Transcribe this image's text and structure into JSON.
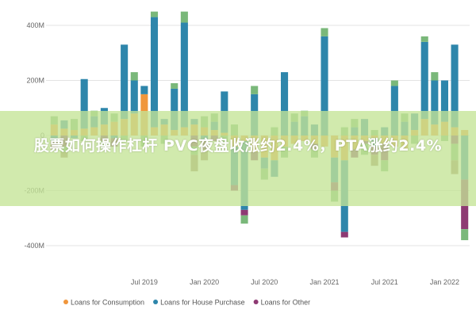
{
  "chart_data": {
    "type": "bar",
    "stacked": true,
    "ylim": [
      -420,
      460
    ],
    "y_ticks": [
      {
        "value": 400,
        "label": "400M"
      },
      {
        "value": 200,
        "label": "200M"
      },
      {
        "value": 0,
        "label": "0"
      },
      {
        "value": -200,
        "label": "-200M"
      },
      {
        "value": -400,
        "label": "-400M"
      }
    ],
    "x_ticks": [
      {
        "index": 9,
        "label": "Jul 2019"
      },
      {
        "index": 15,
        "label": "Jan 2020"
      },
      {
        "index": 21,
        "label": "Jul 2020"
      },
      {
        "index": 27,
        "label": "Jan 2021"
      },
      {
        "index": 33,
        "label": "Jul 2021"
      },
      {
        "index": 39,
        "label": "Jan 2022"
      }
    ],
    "bar_count": 42,
    "grid": true,
    "legend_position": "bottom-left",
    "series": [
      {
        "name": "Loans for Consumption",
        "color": "#f0963c",
        "values": [
          40,
          25,
          20,
          25,
          30,
          40,
          50,
          60,
          80,
          150,
          30,
          40,
          20,
          30,
          40,
          30,
          20,
          10,
          -40,
          -20,
          -60,
          -80,
          -90,
          -40,
          -30,
          -20,
          -30,
          -40,
          -80,
          -90,
          -50,
          -20,
          -10,
          -30,
          -40,
          -50,
          20,
          60,
          40,
          50,
          30,
          20
        ]
      },
      {
        "name": "Loans for House Purchase",
        "color": "#2e86ab",
        "values": [
          -20,
          30,
          -10,
          180,
          40,
          60,
          -10,
          270,
          120,
          30,
          400,
          20,
          150,
          380,
          20,
          -20,
          30,
          150,
          -140,
          -250,
          150,
          -40,
          -60,
          230,
          50,
          70,
          40,
          360,
          -90,
          -260,
          30,
          60,
          -30,
          30,
          180,
          50,
          60,
          280,
          160,
          150,
          300,
          -160
        ]
      },
      {
        "name": "Loans for Other",
        "color": "#8e3a73",
        "values": [
          -30,
          -40,
          0,
          0,
          0,
          -20,
          -30,
          0,
          0,
          0,
          0,
          0,
          0,
          0,
          -40,
          -30,
          -20,
          0,
          -20,
          -20,
          -30,
          0,
          0,
          0,
          0,
          0,
          -20,
          0,
          -30,
          -20,
          -30,
          -10,
          -30,
          -60,
          0,
          0,
          0,
          0,
          0,
          0,
          -30,
          -180
        ]
      },
      {
        "name": "",
        "color": "#7ab87a",
        "values": [
          30,
          -20,
          40,
          -20,
          20,
          -30,
          30,
          -20,
          30,
          -40,
          20,
          -30,
          20,
          40,
          -30,
          40,
          30,
          -30,
          40,
          -30,
          30,
          -40,
          30,
          -40,
          30,
          20,
          -30,
          30,
          -40,
          30,
          30,
          -40,
          20,
          -40,
          20,
          30,
          -30,
          20,
          30,
          -20,
          -60,
          -40
        ]
      },
      {
        "name": "",
        "color": "#a08466",
        "values": [
          0,
          -20,
          0,
          0,
          0,
          0,
          0,
          0,
          0,
          0,
          0,
          0,
          0,
          0,
          -60,
          -40,
          0,
          0,
          0,
          0,
          0,
          0,
          0,
          0,
          0,
          0,
          0,
          0,
          0,
          0,
          0,
          0,
          -40,
          0,
          0,
          0,
          0,
          0,
          0,
          0,
          -50,
          0
        ]
      }
    ],
    "legend": [
      {
        "label": "Loans for Consumption",
        "color": "#f0963c"
      },
      {
        "label": "Loans for House Purchase",
        "color": "#2e86ab"
      },
      {
        "label": "Loans for Other",
        "color": "#8e3a73"
      }
    ]
  },
  "banner": {
    "title": "股票如何操作杠杆 PVC夜盘收涨约2.4%，PTA涨约2.4%"
  }
}
